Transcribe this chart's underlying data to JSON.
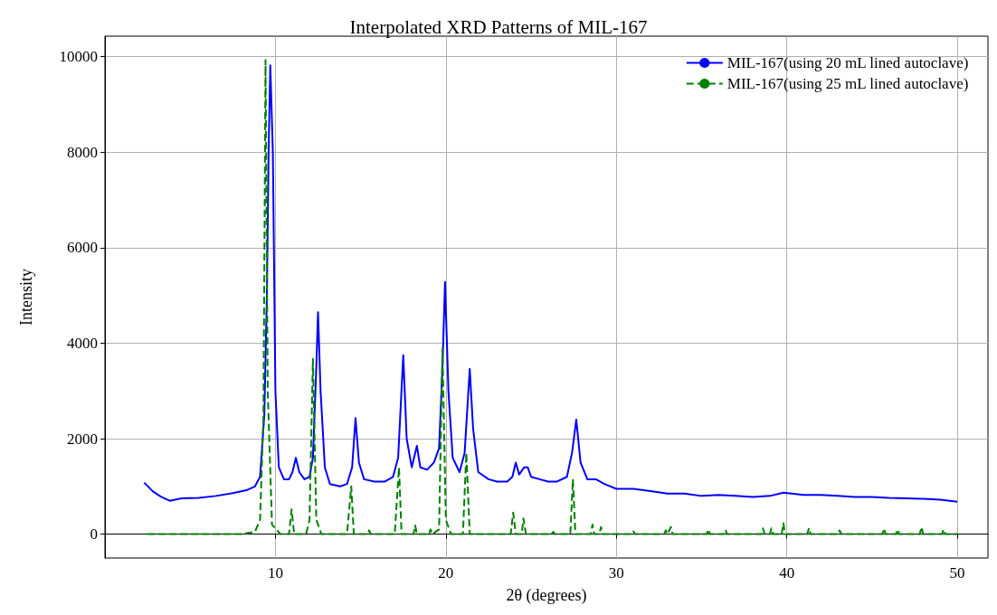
{
  "chart_data": {
    "type": "line",
    "title": "Interpolated XRD Patterns of MIL-167",
    "xlabel": "2θ (degrees)",
    "ylabel": "Intensity",
    "xlim": [
      0,
      51.8
    ],
    "xticks": [
      10,
      20,
      30,
      40,
      50
    ],
    "ylim": [
      -500,
      10430
    ],
    "yticks": [
      0,
      2000,
      4000,
      6000,
      8000,
      10000
    ],
    "grid": true,
    "legend": "top right",
    "series": [
      {
        "name": "MIL-167(using 20 mL lined autoclave)",
        "color": "#0000ff",
        "line_style": "solid",
        "x": [
          2.3,
          2.8,
          3.3,
          3.8,
          4.5,
          5.5,
          6.5,
          7.5,
          8.3,
          8.8,
          9.1,
          9.35,
          9.5,
          9.6,
          9.7,
          9.85,
          10.0,
          10.2,
          10.5,
          10.8,
          11.0,
          11.2,
          11.4,
          11.7,
          12.0,
          12.2,
          12.4,
          12.5,
          12.65,
          12.9,
          13.2,
          13.8,
          14.2,
          14.5,
          14.7,
          14.9,
          15.2,
          15.8,
          16.4,
          16.9,
          17.2,
          17.5,
          17.7,
          18.0,
          18.3,
          18.5,
          18.9,
          19.3,
          19.6,
          19.8,
          19.95,
          20.15,
          20.4,
          20.8,
          21.1,
          21.4,
          21.6,
          21.9,
          22.5,
          23.0,
          23.6,
          23.9,
          24.1,
          24.3,
          24.6,
          24.8,
          25.0,
          25.5,
          26.0,
          26.5,
          27.1,
          27.4,
          27.65,
          27.9,
          28.3,
          28.8,
          29.3,
          30,
          31,
          32,
          33,
          34,
          35,
          36,
          37,
          38,
          39,
          39.8,
          41,
          42,
          43,
          44,
          45,
          46,
          47,
          48,
          49,
          50
        ],
        "values": [
          1080,
          900,
          780,
          700,
          750,
          760,
          800,
          860,
          920,
          1000,
          1200,
          2500,
          5000,
          8000,
          9820,
          8000,
          3000,
          1400,
          1150,
          1150,
          1300,
          1600,
          1300,
          1150,
          1200,
          1600,
          3500,
          4650,
          3000,
          1400,
          1050,
          1000,
          1050,
          1400,
          2430,
          1500,
          1150,
          1100,
          1100,
          1200,
          1600,
          3750,
          2000,
          1400,
          1850,
          1400,
          1350,
          1500,
          1800,
          3500,
          5280,
          3000,
          1600,
          1300,
          1700,
          3460,
          2200,
          1300,
          1150,
          1100,
          1100,
          1200,
          1500,
          1250,
          1400,
          1400,
          1200,
          1150,
          1100,
          1100,
          1200,
          1700,
          2400,
          1500,
          1150,
          1150,
          1050,
          950,
          950,
          900,
          850,
          850,
          800,
          820,
          800,
          780,
          800,
          870,
          820,
          820,
          800,
          780,
          780,
          760,
          750,
          740,
          720,
          680
        ]
      },
      {
        "name": "MIL-167(using 25 mL lined autoclave)",
        "color": "#008000",
        "line_style": "dashed",
        "x": [
          2.5,
          8,
          8.8,
          9.1,
          9.3,
          9.42,
          9.55,
          9.8,
          10.3,
          10.8,
          10.95,
          11.1,
          11.8,
          12.0,
          12.2,
          12.4,
          12.7,
          14.2,
          14.45,
          14.6,
          15.4,
          15.5,
          15.6,
          17.0,
          17.25,
          17.4,
          18.1,
          18.2,
          18.3,
          19.0,
          19.1,
          19.2,
          19.6,
          19.8,
          20.0,
          20.3,
          21.0,
          21.2,
          21.4,
          23.8,
          23.95,
          24.1,
          24.45,
          24.55,
          24.7,
          26.2,
          26.3,
          26.4,
          27.3,
          27.45,
          27.6,
          28.5,
          28.6,
          28.7,
          29.0,
          29.1,
          29.2,
          30.9,
          31.0,
          31.1,
          32.8,
          32.9,
          33.0,
          33.2,
          33.3,
          35.3,
          35.4,
          35.5,
          36.3,
          36.4,
          36.5,
          38.5,
          38.6,
          38.7,
          39.0,
          39.1,
          39.2,
          39.7,
          39.8,
          39.9,
          41.2,
          41.3,
          41.4,
          43.0,
          43.1,
          43.2,
          45.6,
          45.7,
          45.8,
          46.4,
          46.5,
          46.6,
          47.8,
          47.9,
          48.0,
          49.1,
          49.2,
          49.3,
          50
        ],
        "values": [
          0,
          0,
          50,
          300,
          2500,
          9930,
          3000,
          200,
          0,
          0,
          520,
          0,
          0,
          300,
          3670,
          300,
          0,
          0,
          1000,
          0,
          0,
          80,
          0,
          0,
          1400,
          0,
          0,
          180,
          0,
          0,
          100,
          0,
          100,
          3870,
          300,
          0,
          0,
          1700,
          0,
          0,
          450,
          0,
          0,
          330,
          0,
          0,
          50,
          0,
          0,
          1150,
          0,
          0,
          200,
          0,
          0,
          150,
          0,
          0,
          60,
          0,
          0,
          80,
          0,
          150,
          0,
          0,
          100,
          0,
          0,
          90,
          0,
          0,
          120,
          0,
          0,
          120,
          0,
          0,
          230,
          0,
          0,
          130,
          0,
          0,
          80,
          0,
          0,
          120,
          0,
          0,
          100,
          0,
          0,
          150,
          0,
          0,
          100,
          0,
          0
        ]
      }
    ]
  }
}
